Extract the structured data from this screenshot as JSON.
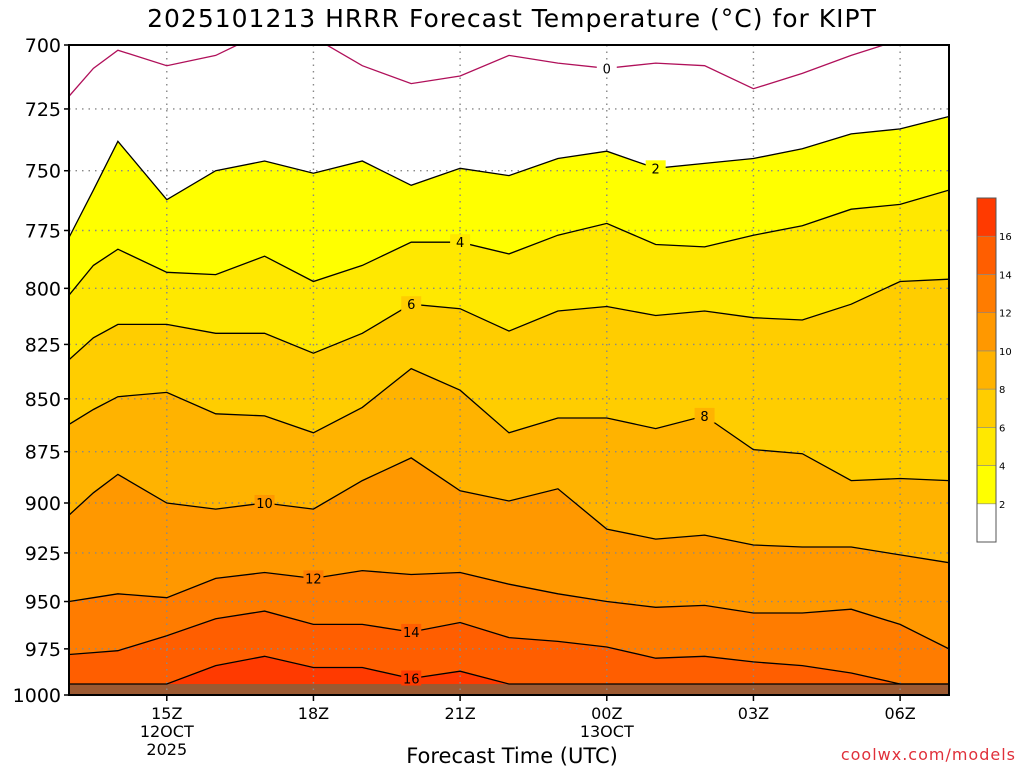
{
  "title": "2025101213 HRRR Forecast Temperature (°C) for KIPT",
  "credit": "coolwx.com/models",
  "colors": {
    "band_0_2": "#ffffff",
    "band_2_4": "#ffff00",
    "band_4_6": "#ffe800",
    "band_6_8": "#ffcd00",
    "band_8_10": "#ffb300",
    "band_10_12": "#ff9800",
    "band_12_14": "#ff7c00",
    "band_14_16": "#ff5e00",
    "band_16_18": "#ff3a00",
    "contour_0": "#b0105a",
    "contour": "#000000",
    "ground": "#9c5a32",
    "grid": "#888888"
  },
  "chart_data": {
    "type": "heatmap",
    "title": "2025101213 HRRR Forecast Temperature (°C) for KIPT",
    "xlabel": "Forecast Time (UTC)",
    "ylabel": "",
    "x_ticks": [
      {
        "hour": 15,
        "label": "15Z",
        "sublabels": [
          "12OCT",
          "2025"
        ]
      },
      {
        "hour": 18,
        "label": "18Z",
        "sublabels": []
      },
      {
        "hour": 21,
        "label": "21Z",
        "sublabels": []
      },
      {
        "hour": 24,
        "label": "00Z",
        "sublabels": [
          "13OCT"
        ]
      },
      {
        "hour": 27,
        "label": "03Z",
        "sublabels": []
      },
      {
        "hour": 30,
        "label": "06Z",
        "sublabels": []
      }
    ],
    "xlim": [
      13,
      31
    ],
    "ylim": [
      700,
      1000
    ],
    "y_ticks": [
      700,
      725,
      750,
      775,
      800,
      825,
      850,
      875,
      900,
      925,
      950,
      975,
      1000
    ],
    "pressure_axis": "log",
    "grid": true,
    "colorbar": {
      "levels": [
        0,
        2,
        4,
        6,
        8,
        10,
        12,
        14,
        16,
        18
      ],
      "labels": [
        "2",
        "4",
        "6",
        "8",
        "10",
        "12",
        "14",
        "16"
      ],
      "placement": "right"
    },
    "hours": [
      13,
      13.5,
      14,
      15,
      16,
      17,
      18,
      19,
      20,
      21,
      22,
      23,
      24,
      25,
      26,
      27,
      28,
      29,
      30,
      31
    ],
    "surface_pressure": 994,
    "contours": [
      {
        "level": 0,
        "label": "0",
        "label_hour": 24,
        "pressures": [
          720,
          709,
          702,
          708,
          704,
          695,
          697,
          708,
          715,
          712,
          704,
          707,
          709,
          707,
          708,
          717,
          711,
          704,
          698,
          694
        ]
      },
      {
        "level": 2,
        "label": "2",
        "label_hour": 25,
        "pressures": [
          778,
          758,
          738,
          762,
          750,
          746,
          751,
          746,
          756,
          749,
          752,
          745,
          742,
          749,
          747,
          745,
          741,
          735,
          733,
          728
        ]
      },
      {
        "level": 4,
        "label": "4",
        "label_hour": 21,
        "pressures": [
          803,
          790,
          783,
          793,
          794,
          786,
          797,
          790,
          780,
          780,
          785,
          777,
          772,
          781,
          782,
          777,
          773,
          766,
          764,
          758
        ]
      },
      {
        "level": 6,
        "label": "6",
        "label_hour": 20,
        "pressures": [
          832,
          822,
          816,
          816,
          820,
          820,
          829,
          820,
          807,
          809,
          819,
          810,
          808,
          812,
          810,
          813,
          814,
          807,
          797,
          796
        ]
      },
      {
        "level": 8,
        "label": "8",
        "label_hour": 26,
        "pressures": [
          862,
          855,
          849,
          847,
          857,
          858,
          866,
          854,
          836,
          846,
          866,
          859,
          859,
          864,
          858,
          874,
          876,
          889,
          888,
          889
        ]
      },
      {
        "level": 10,
        "label": "10",
        "label_hour": 17,
        "pressures": [
          906,
          895,
          886,
          900,
          903,
          900,
          903,
          889,
          878,
          894,
          899,
          893,
          913,
          918,
          916,
          921,
          922,
          922,
          926,
          930
        ]
      },
      {
        "level": 12,
        "label": "12",
        "label_hour": 18,
        "pressures": [
          950,
          948,
          946,
          948,
          938,
          935,
          938,
          934,
          936,
          935,
          941,
          946,
          950,
          953,
          952,
          956,
          956,
          954,
          962,
          975
        ]
      },
      {
        "level": 14,
        "label": "14",
        "label_hour": 20,
        "pressures": [
          978,
          977,
          976,
          968,
          959,
          955,
          962,
          962,
          966,
          961,
          969,
          971,
          974,
          980,
          979,
          982,
          984,
          988,
          994,
          994
        ]
      },
      {
        "level": 16,
        "label": "16",
        "label_hour": 20,
        "pressures": [
          994,
          994,
          994,
          994,
          984,
          979,
          985,
          985,
          991,
          987,
          994,
          994,
          994,
          994,
          994,
          994,
          994,
          994,
          994,
          994
        ]
      }
    ]
  }
}
